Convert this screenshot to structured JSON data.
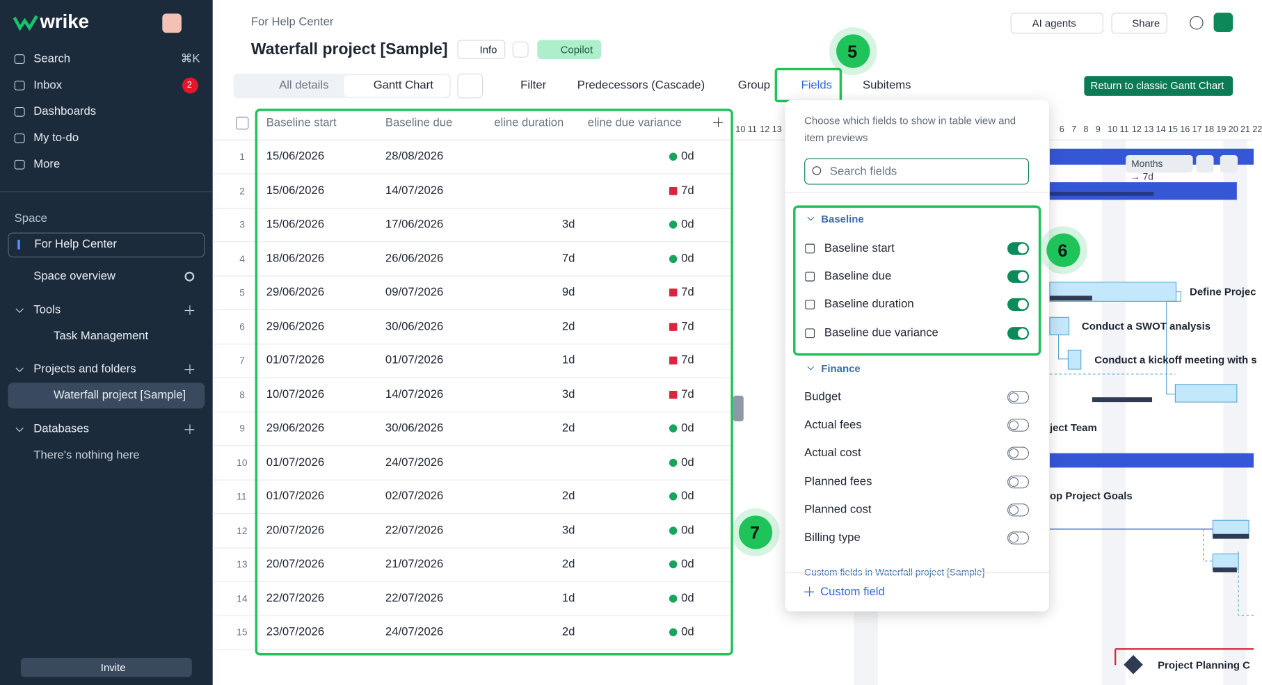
{
  "sidebar": {
    "brand": "wrike",
    "nav": [
      {
        "label": "Search",
        "shortcut": "⌘K"
      },
      {
        "label": "Inbox",
        "badge": 2
      },
      {
        "label": "Dashboards"
      },
      {
        "label": "My to-do"
      },
      {
        "label": "More"
      }
    ],
    "space_label": "Space",
    "space_name": "For Help Center",
    "space_overview": "Space overview",
    "sections": [
      {
        "title": "Tools",
        "items": [
          "Task Management"
        ]
      },
      {
        "title": "Projects and folders",
        "items": [
          "Waterfall project [Sample]"
        ]
      },
      {
        "title": "Databases",
        "items": [
          "There's nothing here"
        ]
      }
    ],
    "invite": "Invite"
  },
  "header": {
    "breadcrumb": "For Help Center",
    "title": "Waterfall project [Sample]",
    "info": "Info",
    "copilot": "Copilot",
    "ai_agents": "AI agents",
    "share": "Share"
  },
  "toolbar": {
    "views": [
      "All details",
      "Gantt Chart"
    ],
    "actions": [
      "Filter",
      "Predecessors (Cascade)",
      "Group",
      "Fields",
      "Subitems"
    ],
    "classic": "Return to classic Gantt Chart"
  },
  "table": {
    "columns": [
      "Baseline start",
      "Baseline due",
      "eline duration",
      "eline due variance"
    ],
    "rows": [
      {
        "n": 1,
        "start": "15/06/2026",
        "due": "28/08/2026",
        "duration": null,
        "variance": "0d",
        "marker": "#1aa35a"
      },
      {
        "n": 2,
        "start": "15/06/2026",
        "due": "14/07/2026",
        "duration": null,
        "variance": "7d",
        "marker": "#d9263f"
      },
      {
        "n": 3,
        "start": "15/06/2026",
        "due": "17/06/2026",
        "duration": "3d",
        "variance": "0d",
        "marker": "#1aa35a"
      },
      {
        "n": 4,
        "start": "18/06/2026",
        "due": "26/06/2026",
        "duration": "7d",
        "variance": "0d",
        "marker": "#1aa35a"
      },
      {
        "n": 5,
        "start": "29/06/2026",
        "due": "09/07/2026",
        "duration": "9d",
        "variance": "7d",
        "marker": "#d9263f"
      },
      {
        "n": 6,
        "start": "29/06/2026",
        "due": "30/06/2026",
        "duration": "2d",
        "variance": "7d",
        "marker": "#d9263f"
      },
      {
        "n": 7,
        "start": "01/07/2026",
        "due": "01/07/2026",
        "duration": "1d",
        "variance": "7d",
        "marker": "#d9263f"
      },
      {
        "n": 8,
        "start": "10/07/2026",
        "due": "14/07/2026",
        "duration": "3d",
        "variance": "7d",
        "marker": "#d9263f"
      },
      {
        "n": 9,
        "start": "29/06/2026",
        "due": "30/06/2026",
        "duration": "2d",
        "variance": "0d",
        "marker": "#1aa35a"
      },
      {
        "n": 10,
        "start": "01/07/2026",
        "due": "24/07/2026",
        "duration": null,
        "variance": "0d",
        "marker": "#1aa35a"
      },
      {
        "n": 11,
        "start": "01/07/2026",
        "due": "02/07/2026",
        "duration": "2d",
        "variance": "0d",
        "marker": "#1aa35a"
      },
      {
        "n": 12,
        "start": "20/07/2026",
        "due": "22/07/2026",
        "duration": "3d",
        "variance": "0d",
        "marker": "#1aa35a"
      },
      {
        "n": 13,
        "start": "20/07/2026",
        "due": "21/07/2026",
        "duration": "2d",
        "variance": "0d",
        "marker": "#1aa35a"
      },
      {
        "n": 14,
        "start": "22/07/2026",
        "due": "22/07/2026",
        "duration": "1d",
        "variance": "0d",
        "marker": "#1aa35a"
      },
      {
        "n": 15,
        "start": "23/07/2026",
        "due": "24/07/2026",
        "duration": "2d",
        "variance": "0d",
        "marker": "#1aa35a"
      }
    ]
  },
  "fields_panel": {
    "hint": [
      "Choose which fields to show in table view and",
      "item previews"
    ],
    "search_placeholder": "Search fields",
    "groups": [
      {
        "title": "Baseline",
        "fields": [
          {
            "label": "Baseline start",
            "on": true
          },
          {
            "label": "Baseline due",
            "on": true
          },
          {
            "label": "Baseline duration",
            "on": true
          },
          {
            "label": "Baseline due variance",
            "on": true
          }
        ]
      },
      {
        "title": "Finance",
        "fields": [
          {
            "label": "Budget",
            "on": false
          },
          {
            "label": "Actual fees",
            "on": false
          },
          {
            "label": "Actual cost",
            "on": false
          },
          {
            "label": "Planned fees",
            "on": false
          },
          {
            "label": "Planned cost",
            "on": false
          },
          {
            "label": "Billing type",
            "on": false
          }
        ]
      }
    ],
    "custom_fields_note": "Custom fields in Waterfall project [Sample]",
    "add": "Custom field"
  },
  "gantt": {
    "timescale": "Months",
    "shift_note": "→ 7d",
    "days_left": [
      "10",
      "11",
      "12",
      "13"
    ],
    "days_right": [
      "6",
      "7",
      "8",
      "9",
      "10",
      "11",
      "12",
      "13",
      "14",
      "15",
      "16",
      "17",
      "18",
      "19",
      "20",
      "21",
      "22"
    ],
    "labels": [
      "Define Projec",
      "Conduct a SWOT analysis",
      "Conduct a kickoff meeting with s",
      "ject Team",
      "op Project Goals",
      "Project Planning C"
    ]
  },
  "callouts": [
    5,
    6,
    7
  ]
}
